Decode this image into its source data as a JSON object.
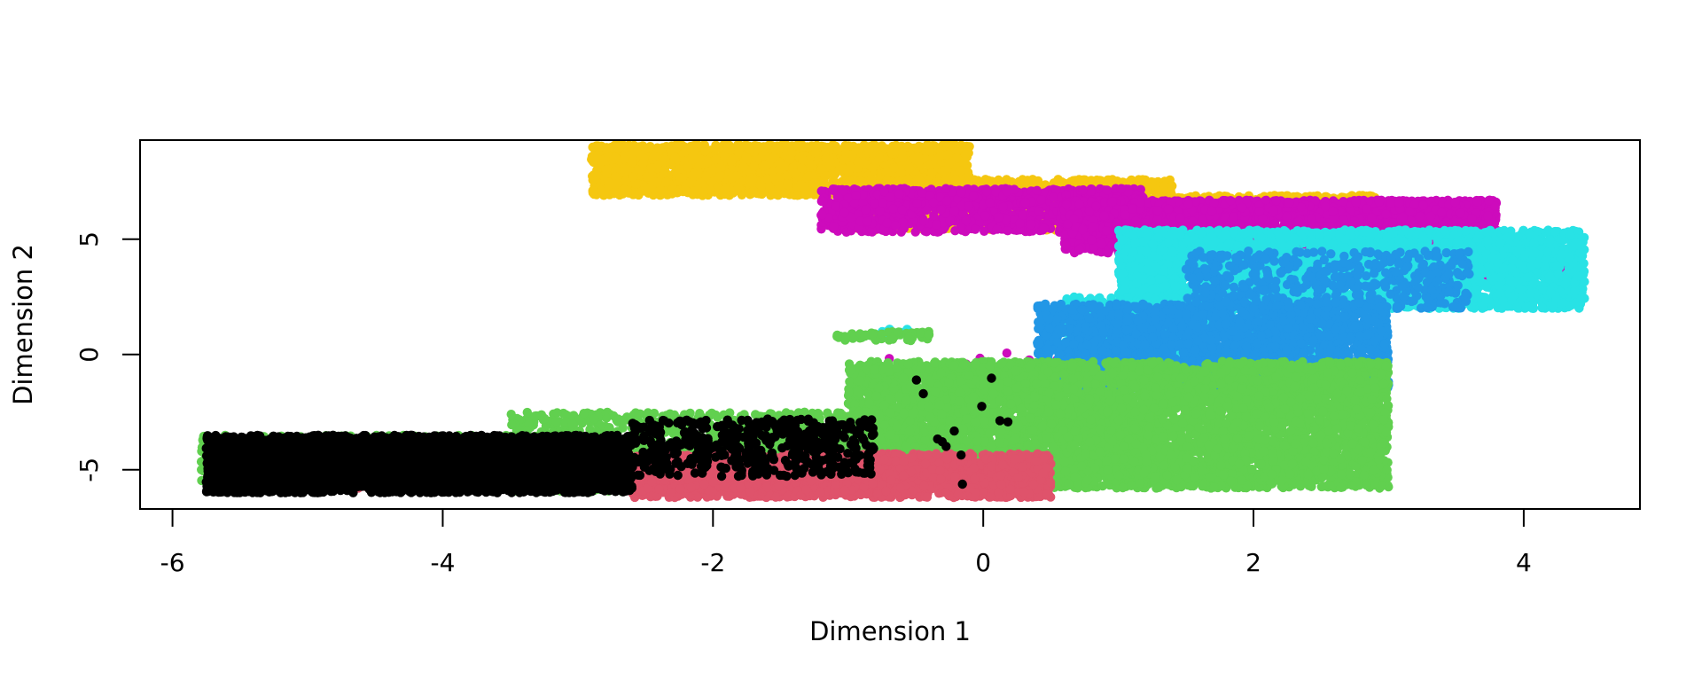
{
  "chart_data": {
    "type": "scatter",
    "title": "",
    "xlabel": "Dimension 1",
    "ylabel": "Dimension 2",
    "xlim": [
      -6.24,
      4.86
    ],
    "ylim": [
      -6.7,
      9.3
    ],
    "x_ticks": [
      -6,
      -4,
      -2,
      0,
      2,
      4
    ],
    "y_ticks": [
      -5,
      0,
      5
    ],
    "grid": false,
    "legend": "none",
    "colors": [
      "#F5C710",
      "#CD0BBC",
      "#28E2E5",
      "#2297E6",
      "#61D04F",
      "#DF536B",
      "#000000"
    ],
    "series": [
      {
        "color": "#F5C710",
        "clusters": [
          {
            "x": [
              -2.9,
              -0.1
            ],
            "y": [
              6.9,
              9.1
            ],
            "count": 2200
          },
          {
            "x": [
              -1.0,
              1.4
            ],
            "y": [
              5.4,
              7.6
            ],
            "count": 1600
          },
          {
            "x": [
              1.4,
              2.9
            ],
            "y": [
              6.2,
              6.9
            ],
            "count": 400
          }
        ]
      },
      {
        "color": "#CD0BBC",
        "clusters": [
          {
            "x": [
              -1.2,
              1.2
            ],
            "y": [
              5.3,
              7.2
            ],
            "count": 1200
          },
          {
            "x": [
              0.6,
              3.8
            ],
            "y": [
              4.4,
              6.7
            ],
            "count": 3200
          },
          {
            "x": [
              3.0,
              4.4
            ],
            "y": [
              3.3,
              4.6
            ],
            "count": 150
          },
          {
            "x": [
              -0.8,
              1.5
            ],
            "y": [
              -1.4,
              0.2
            ],
            "count": 25
          },
          {
            "x": [
              -5.3,
              -2.0
            ],
            "y": [
              -5.5,
              -3.4
            ],
            "count": 8
          }
        ]
      },
      {
        "color": "#28E2E5",
        "clusters": [
          {
            "x": [
              1.0,
              4.45
            ],
            "y": [
              2.0,
              5.4
            ],
            "count": 3500
          },
          {
            "x": [
              0.6,
              2.6
            ],
            "y": [
              -0.5,
              2.5
            ],
            "count": 1000
          },
          {
            "x": [
              -0.75,
              -0.55
            ],
            "y": [
              0.8,
              1.1
            ],
            "count": 12
          }
        ]
      },
      {
        "color": "#2297E6",
        "clusters": [
          {
            "x": [
              0.4,
              3.0
            ],
            "y": [
              -1.5,
              2.2
            ],
            "count": 2400
          },
          {
            "x": [
              1.5,
              3.6
            ],
            "y": [
              2.0,
              4.5
            ],
            "count": 500
          },
          {
            "x": [
              -0.8,
              0.4
            ],
            "y": [
              -1.6,
              -0.6
            ],
            "count": 40
          }
        ]
      },
      {
        "color": "#61D04F",
        "clusters": [
          {
            "x": [
              -1.0,
              3.0
            ],
            "y": [
              -5.8,
              -0.3
            ],
            "count": 6000
          },
          {
            "x": [
              -3.5,
              -0.5
            ],
            "y": [
              -6.0,
              -2.5
            ],
            "count": 1500
          },
          {
            "x": [
              -5.8,
              -3.3
            ],
            "y": [
              -5.6,
              -3.5
            ],
            "count": 700
          },
          {
            "x": [
              -1.1,
              -0.4
            ],
            "y": [
              0.6,
              1.0
            ],
            "count": 60
          }
        ]
      },
      {
        "color": "#DF536B",
        "clusters": [
          {
            "x": [
              -2.6,
              0.5
            ],
            "y": [
              -6.2,
              -4.3
            ],
            "count": 2200
          },
          {
            "x": [
              -4.7,
              -2.6
            ],
            "y": [
              -5.9,
              -4.2
            ],
            "count": 700
          }
        ]
      },
      {
        "color": "#000000",
        "clusters": [
          {
            "x": [
              -5.75,
              -2.6
            ],
            "y": [
              -6.0,
              -3.5
            ],
            "count": 3800
          },
          {
            "x": [
              -2.6,
              -0.8
            ],
            "y": [
              -5.3,
              -2.8
            ],
            "count": 500
          },
          {
            "x": [
              -0.6,
              0.2
            ],
            "y": [
              -5.7,
              -1.0
            ],
            "count": 12
          }
        ]
      }
    ]
  }
}
